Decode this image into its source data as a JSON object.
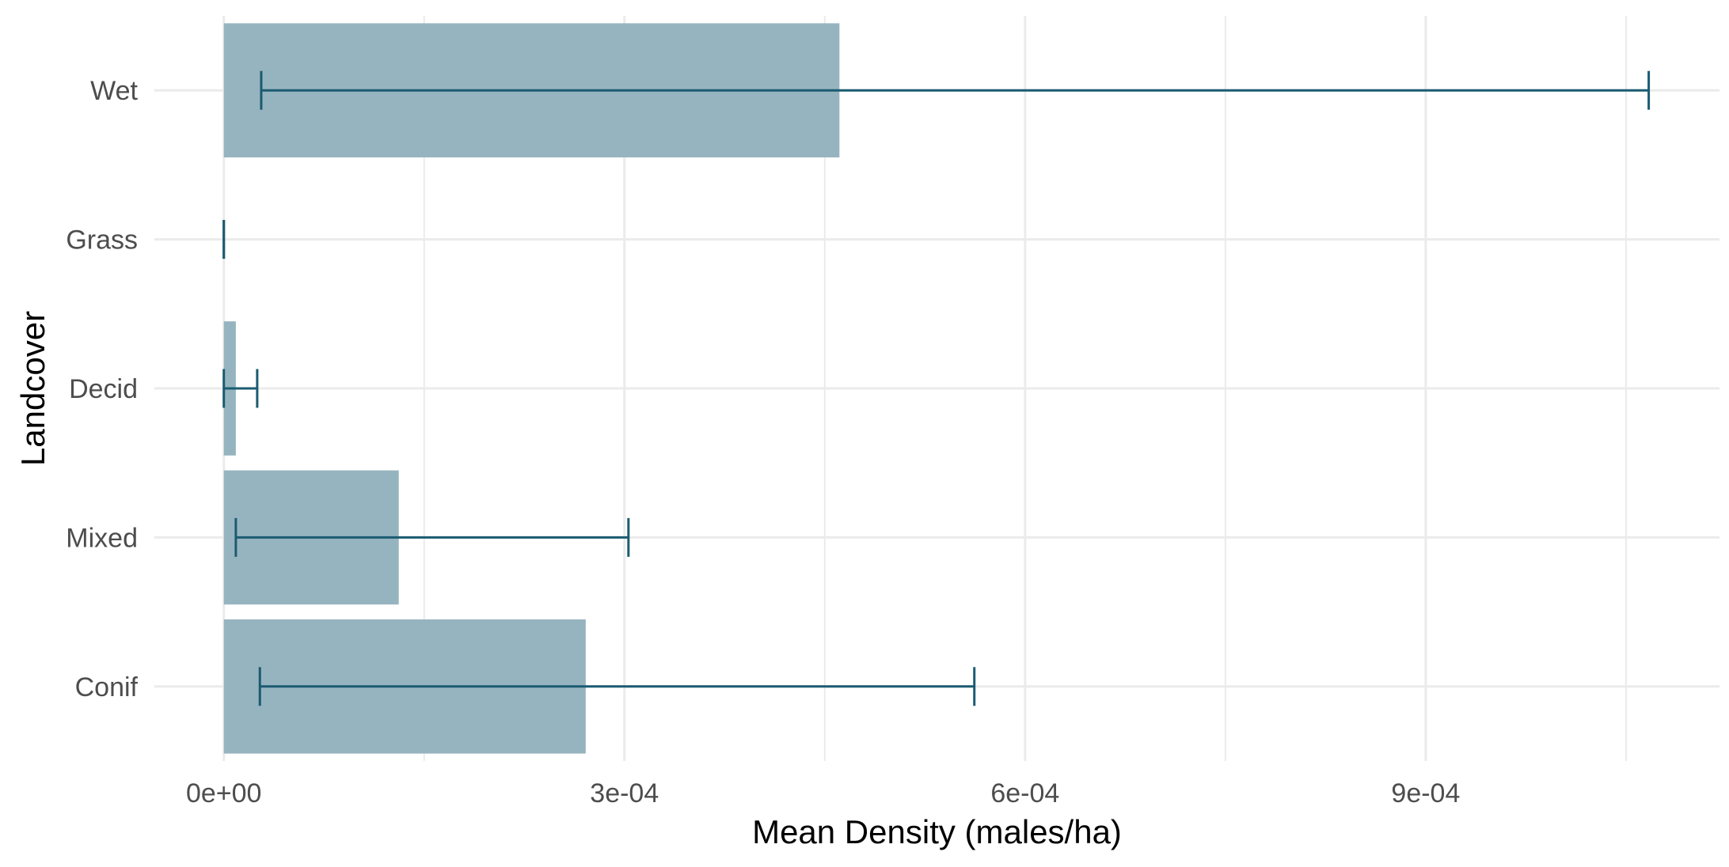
{
  "chart_data": {
    "type": "bar",
    "orientation": "horizontal",
    "title": "",
    "xlabel": "Mean Density (males/ha)",
    "ylabel": "Landcover",
    "categories": [
      "Conif",
      "Mixed",
      "Decid",
      "Grass",
      "Wet"
    ],
    "values": [
      0.000271,
      0.000131,
      9e-06,
      0.0,
      0.000461
    ],
    "error_bars": {
      "lower": [
        2.7e-05,
        9e-06,
        0.0,
        0.0,
        2.8e-05
      ],
      "upper": [
        0.000562,
        0.000303,
        2.5e-05,
        0.0,
        0.001067
      ]
    },
    "xlim": [
      -5.2e-05,
      0.00112
    ],
    "x_ticks": [
      0,
      0.0003,
      0.0006,
      0.0009
    ],
    "x_tick_labels": [
      "0e+00",
      "3e-04",
      "6e-04",
      "9e-04"
    ],
    "x_minor_ticks": [
      0.00015,
      0.00045,
      0.00075,
      0.00105
    ],
    "grid": true,
    "legend": "none",
    "colors": {
      "bar_fill": "#96b4bf",
      "error_bar": "#1b5b72",
      "grid": "#ebebeb",
      "tick_label": "#4d4d4d",
      "axis_title": "#000000"
    }
  }
}
